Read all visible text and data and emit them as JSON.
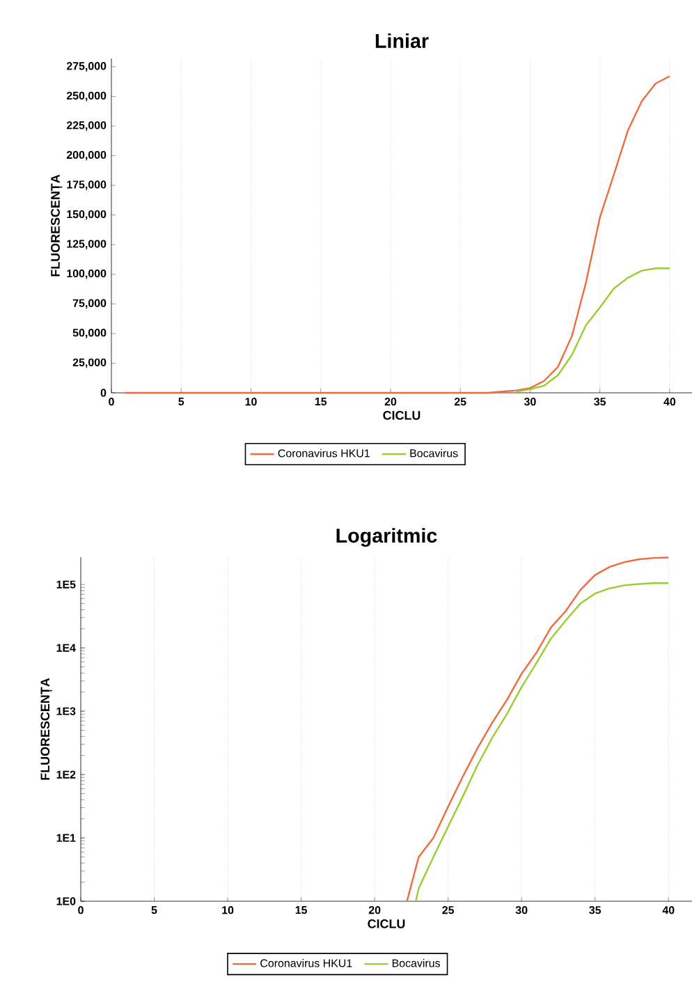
{
  "chart_data": [
    {
      "type": "line",
      "title": "Liniar",
      "xlabel": "CICLU",
      "ylabel": "FLUORESCENȚA",
      "xlim": [
        0,
        41.6
      ],
      "ylim": [
        0,
        282000
      ],
      "xticks": [
        0,
        5,
        10,
        15,
        20,
        25,
        30,
        35,
        40
      ],
      "yticks": [
        {
          "value": 0,
          "label": "0"
        },
        {
          "value": 25000,
          "label": "25,000"
        },
        {
          "value": 50000,
          "label": "50,000"
        },
        {
          "value": 75000,
          "label": "75,000"
        },
        {
          "value": 100000,
          "label": "100,000"
        },
        {
          "value": 125000,
          "label": "125,000"
        },
        {
          "value": 150000,
          "label": "150,000"
        },
        {
          "value": 175000,
          "label": "175,000"
        },
        {
          "value": 200000,
          "label": "200,000"
        },
        {
          "value": 225000,
          "label": "225,000"
        },
        {
          "value": 250000,
          "label": "250,000"
        },
        {
          "value": 275000,
          "label": "275,000"
        }
      ],
      "grid": "x",
      "legend": "bottom",
      "series": [
        {
          "name": "Coronavirus HKU1",
          "color": "#f06a3c",
          "x": [
            1,
            27,
            28,
            29,
            30,
            31,
            32,
            33,
            34,
            35,
            36,
            37,
            38,
            39,
            40
          ],
          "values": [
            0,
            0,
            1000,
            2000,
            4000,
            10000,
            22000,
            48000,
            93000,
            148000,
            184000,
            221000,
            246000,
            261000,
            267000
          ]
        },
        {
          "name": "Bocavirus",
          "color": "#99cc33",
          "x": [
            29,
            30,
            31,
            32,
            33,
            34,
            35,
            36,
            37,
            38,
            39,
            40
          ],
          "values": [
            1000,
            3000,
            6000,
            15000,
            32000,
            57000,
            72000,
            88000,
            97000,
            103000,
            105000,
            105000
          ]
        }
      ]
    },
    {
      "type": "line",
      "title": "Logaritmic",
      "xlabel": "CICLU",
      "ylabel": "FLUORESCENȚA",
      "xlim": [
        0,
        41.6
      ],
      "ylim": [
        1,
        270000
      ],
      "log": "y",
      "xticks": [
        0,
        5,
        10,
        15,
        20,
        25,
        30,
        35,
        40
      ],
      "yticks": [
        {
          "value": 1,
          "label": "1E0"
        },
        {
          "value": 10,
          "label": "1E1"
        },
        {
          "value": 100,
          "label": "1E2"
        },
        {
          "value": 1000,
          "label": "1E3"
        },
        {
          "value": 10000,
          "label": "1E4"
        },
        {
          "value": 100000,
          "label": "1E5"
        }
      ],
      "grid": "x",
      "legend": "bottom",
      "series": [
        {
          "name": "Coronavirus HKU1",
          "color": "#f06a3c",
          "x": [
            22.2,
            23,
            24,
            25,
            26,
            27,
            28,
            29,
            30,
            31,
            32,
            33,
            34,
            35,
            36,
            37,
            38,
            39,
            40
          ],
          "values": [
            1,
            5,
            10,
            31,
            93,
            260,
            660,
            1500,
            3900,
            8300,
            21000,
            38000,
            82000,
            141000,
            190000,
            225000,
            250000,
            262000,
            267000
          ]
        },
        {
          "name": "Bocavirus",
          "color": "#99cc33",
          "x": [
            22.8,
            23,
            24,
            25,
            26,
            27,
            28,
            29,
            30,
            31,
            32,
            33,
            34,
            35,
            36,
            37,
            38,
            39,
            40
          ],
          "values": [
            1,
            1.6,
            5,
            15,
            45,
            140,
            380,
            900,
            2400,
            5700,
            14000,
            27000,
            50000,
            72000,
            87000,
            97000,
            102000,
            105000,
            105000
          ]
        }
      ]
    }
  ]
}
